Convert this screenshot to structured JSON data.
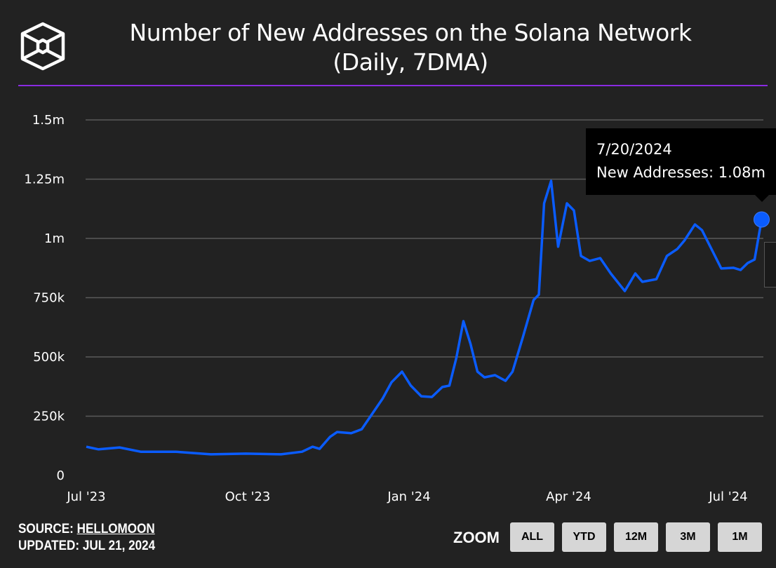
{
  "header": {
    "title_line1": "Number of New Addresses on the Solana Network",
    "title_line2": "(Daily, 7DMA)",
    "logo_icon": "cube-logo-icon",
    "accent_color": "#8a2be2"
  },
  "chart_data": {
    "type": "line",
    "title": "Number of New Addresses on the Solana Network (Daily, 7DMA)",
    "xlabel": "",
    "ylabel": "",
    "ylim": [
      0,
      1500000
    ],
    "y_ticks": [
      {
        "value": 0,
        "label": "0"
      },
      {
        "value": 250000,
        "label": "250k"
      },
      {
        "value": 500000,
        "label": "500k"
      },
      {
        "value": 750000,
        "label": "750k"
      },
      {
        "value": 1000000,
        "label": "1m"
      },
      {
        "value": 1250000,
        "label": "1.25m"
      },
      {
        "value": 1500000,
        "label": "1.5m"
      }
    ],
    "x_ticks": [
      {
        "date": "2023-07-01",
        "label": "Jul '23"
      },
      {
        "date": "2023-10-01",
        "label": "Oct '23"
      },
      {
        "date": "2024-01-01",
        "label": "Jan '24"
      },
      {
        "date": "2024-04-01",
        "label": "Apr '24"
      },
      {
        "date": "2024-07-01",
        "label": "Jul '24"
      }
    ],
    "grid": true,
    "line_color": "#0a5cff",
    "series": [
      {
        "points": [
          [
            "2023-07-01",
            121000
          ],
          [
            "2023-07-08",
            110000
          ],
          [
            "2023-07-20",
            118000
          ],
          [
            "2023-08-01",
            100000
          ],
          [
            "2023-08-21",
            100000
          ],
          [
            "2023-09-10",
            89000
          ],
          [
            "2023-09-30",
            92000
          ],
          [
            "2023-10-20",
            89000
          ],
          [
            "2023-11-01",
            100000
          ],
          [
            "2023-11-07",
            121000
          ],
          [
            "2023-11-11",
            112000
          ],
          [
            "2023-11-17",
            163000
          ],
          [
            "2023-11-21",
            183000
          ],
          [
            "2023-11-29",
            178000
          ],
          [
            "2023-12-05",
            195000
          ],
          [
            "2023-12-11",
            260000
          ],
          [
            "2023-12-17",
            325000
          ],
          [
            "2023-12-22",
            393000
          ],
          [
            "2023-12-28",
            438000
          ],
          [
            "2024-01-02",
            379000
          ],
          [
            "2024-01-08",
            334000
          ],
          [
            "2024-01-14",
            331000
          ],
          [
            "2024-01-20",
            373000
          ],
          [
            "2024-01-24",
            379000
          ],
          [
            "2024-01-28",
            497000
          ],
          [
            "2024-02-01",
            651000
          ],
          [
            "2024-02-05",
            556000
          ],
          [
            "2024-02-09",
            438000
          ],
          [
            "2024-02-13",
            414000
          ],
          [
            "2024-02-19",
            423000
          ],
          [
            "2024-02-25",
            399000
          ],
          [
            "2024-02-29",
            438000
          ],
          [
            "2024-03-06",
            586000
          ],
          [
            "2024-03-12",
            740000
          ],
          [
            "2024-03-15",
            763000
          ],
          [
            "2024-03-18",
            1148000
          ],
          [
            "2024-03-22",
            1243000
          ],
          [
            "2024-03-26",
            965000
          ],
          [
            "2024-03-31",
            1148000
          ],
          [
            "2024-04-04",
            1118000
          ],
          [
            "2024-04-08",
            926000
          ],
          [
            "2024-04-13",
            905000
          ],
          [
            "2024-04-19",
            917000
          ],
          [
            "2024-04-25",
            852000
          ],
          [
            "2024-05-03",
            778000
          ],
          [
            "2024-05-09",
            852000
          ],
          [
            "2024-05-13",
            817000
          ],
          [
            "2024-05-21",
            828000
          ],
          [
            "2024-05-27",
            926000
          ],
          [
            "2024-06-02",
            956000
          ],
          [
            "2024-06-06",
            991000
          ],
          [
            "2024-06-12",
            1059000
          ],
          [
            "2024-06-16",
            1035000
          ],
          [
            "2024-06-20",
            976000
          ],
          [
            "2024-06-27",
            873000
          ],
          [
            "2024-07-04",
            876000
          ],
          [
            "2024-07-08",
            867000
          ],
          [
            "2024-07-12",
            896000
          ],
          [
            "2024-07-16",
            911000
          ],
          [
            "2024-07-20",
            1080000
          ]
        ]
      }
    ],
    "highlight": {
      "date": "2024-07-20",
      "value": 1080000
    }
  },
  "tooltip": {
    "date": "7/20/2024",
    "text": "New Addresses: 1.08m"
  },
  "footer": {
    "source_label": "SOURCE:",
    "source_link": "HELLOMOON",
    "updated": "UPDATED: JUL 21, 2024"
  },
  "zoom": {
    "label": "ZOOM",
    "buttons": [
      "ALL",
      "YTD",
      "12M",
      "3M",
      "1M"
    ]
  }
}
